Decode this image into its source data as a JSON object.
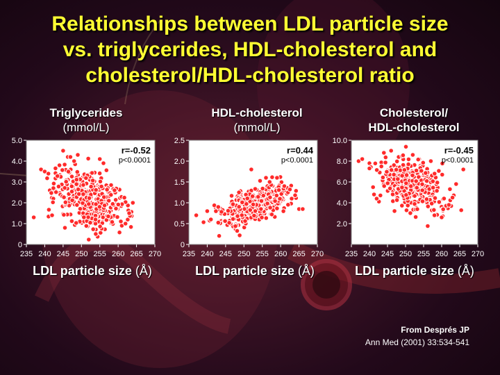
{
  "title": {
    "line1": "Relationships between LDL particle size",
    "line2": "vs. triglycerides, HDL-cholesterol and",
    "line3": "cholesterol/HDL-cholesterol ratio"
  },
  "panels": [
    {
      "title_line1": "Triglycerides",
      "title_line2": "(mmol/L)",
      "xlabel": "LDL particle size",
      "xunit": "(Å)"
    },
    {
      "title_line1": "HDL-cholesterol",
      "title_line2": "(mmol/L)",
      "xlabel": "LDL particle size",
      "xunit": "(Å)"
    },
    {
      "title_line1": "Cholesterol/",
      "title_line2": "HDL-cholesterol",
      "xlabel": "LDL particle size",
      "xunit": "(Å)"
    }
  ],
  "source": {
    "line1": "From Després JP",
    "line2": "Ann Med (2001) 33:534-541"
  },
  "colors": {
    "title": "#ffff33",
    "point_fill": "#ff2a2a",
    "point_stroke": "#ffffff",
    "plot_bg": "#ffffff"
  },
  "chart_data": [
    {
      "type": "scatter",
      "xlim": [
        235,
        270
      ],
      "ylim": [
        0,
        5
      ],
      "xticks": [
        "235",
        "240",
        "245",
        "250",
        "255",
        "260",
        "265",
        "270"
      ],
      "yticks": [
        "0",
        "1.0",
        "2.0",
        "3.0",
        "4.0",
        "5.0"
      ],
      "ytick_values": [
        0,
        1,
        2,
        3,
        4,
        5
      ],
      "annotation_r": "r=-0.52",
      "annotation_p": "p<0.0001",
      "trend": {
        "x_center": 252,
        "y_center": 2.1,
        "slope": -0.06,
        "spread_x": 4.5,
        "spread_y": 0.7
      },
      "points": [
        {
          "x": 237,
          "y": 1.3
        },
        {
          "x": 239,
          "y": 3.6
        },
        {
          "x": 240,
          "y": 3.5
        },
        {
          "x": 241,
          "y": 3.4
        },
        {
          "x": 242,
          "y": 1.4
        },
        {
          "x": 244,
          "y": 3.8
        },
        {
          "x": 245,
          "y": 4.5
        },
        {
          "x": 245.5,
          "y": 0.8
        },
        {
          "x": 247,
          "y": 4.2
        },
        {
          "x": 248,
          "y": 4.0
        },
        {
          "x": 249,
          "y": 4.3
        },
        {
          "x": 255,
          "y": 4.1
        },
        {
          "x": 256,
          "y": 3.9
        },
        {
          "x": 259,
          "y": 2.6
        },
        {
          "x": 263,
          "y": 1.5
        },
        {
          "x": 264,
          "y": 2.0
        },
        {
          "x": 261,
          "y": 0.9
        },
        {
          "x": 262,
          "y": 1.0
        }
      ]
    },
    {
      "type": "scatter",
      "xlim": [
        235,
        270
      ],
      "ylim": [
        0,
        2.5
      ],
      "xticks": [
        "235",
        "240",
        "245",
        "250",
        "255",
        "260",
        "265",
        "270"
      ],
      "yticks": [
        "0",
        "0.5",
        "1.0",
        "1.5",
        "2.0",
        "2.5"
      ],
      "ytick_values": [
        0,
        0.5,
        1,
        1.5,
        2,
        2.5
      ],
      "annotation_r": "r=0.44",
      "annotation_p": "p<0.0001",
      "trend": {
        "x_center": 253,
        "y_center": 0.95,
        "slope": 0.025,
        "spread_x": 4.5,
        "spread_y": 0.2
      },
      "points": [
        {
          "x": 237,
          "y": 0.7
        },
        {
          "x": 240,
          "y": 0.8
        },
        {
          "x": 241,
          "y": 0.6
        },
        {
          "x": 243,
          "y": 0.9
        },
        {
          "x": 252,
          "y": 1.8
        },
        {
          "x": 256,
          "y": 1.6
        },
        {
          "x": 257,
          "y": 1.5
        },
        {
          "x": 259,
          "y": 1.6
        },
        {
          "x": 261,
          "y": 1.4
        },
        {
          "x": 263,
          "y": 1.1
        },
        {
          "x": 265,
          "y": 0.85
        },
        {
          "x": 266,
          "y": 0.85
        }
      ]
    },
    {
      "type": "scatter",
      "xlim": [
        235,
        270
      ],
      "ylim": [
        0,
        10
      ],
      "xticks": [
        "235",
        "240",
        "245",
        "250",
        "255",
        "260",
        "265",
        "270"
      ],
      "yticks": [
        "2.0",
        "4.0",
        "6.0",
        "8.0",
        "10.0"
      ],
      "ytick_values": [
        2,
        4,
        6,
        8,
        10
      ],
      "annotation_r": "r=-0.45",
      "annotation_p": "p<0.0001",
      "trend": {
        "x_center": 252,
        "y_center": 5.6,
        "slope": -0.1,
        "spread_x": 4.5,
        "spread_y": 1.2
      },
      "points": [
        {
          "x": 237,
          "y": 8.0
        },
        {
          "x": 238,
          "y": 8.2
        },
        {
          "x": 240,
          "y": 7.3
        },
        {
          "x": 241,
          "y": 5.5
        },
        {
          "x": 242,
          "y": 4.4
        },
        {
          "x": 244,
          "y": 8.8
        },
        {
          "x": 246,
          "y": 9.0
        },
        {
          "x": 252,
          "y": 8.6
        },
        {
          "x": 257,
          "y": 8.0
        },
        {
          "x": 258,
          "y": 2.8
        },
        {
          "x": 260,
          "y": 2.6
        },
        {
          "x": 262,
          "y": 3.8
        },
        {
          "x": 263,
          "y": 4.5
        },
        {
          "x": 264,
          "y": 5.8
        },
        {
          "x": 266,
          "y": 7.2
        }
      ]
    }
  ]
}
